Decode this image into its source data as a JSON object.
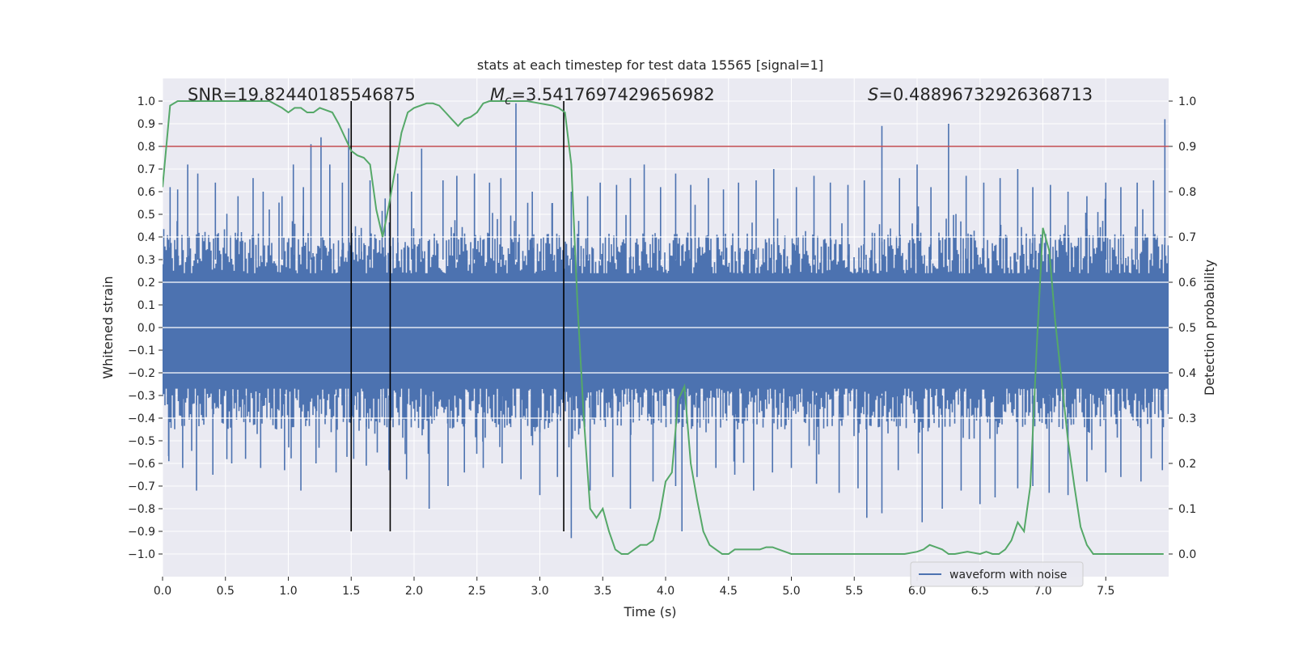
{
  "chart_data": {
    "type": "line",
    "title": "stats at each timestep for test data 15565 [signal=1]",
    "xlabel": "Time (s)",
    "ylabel_left": "Whitened strain",
    "ylabel_right": "Detection probability",
    "xlim": [
      0.0,
      8.0
    ],
    "ylim_left": [
      -1.1,
      1.1
    ],
    "ylim_right": [
      -0.05,
      1.05
    ],
    "x_ticks": [
      "0.0",
      "0.5",
      "1.0",
      "1.5",
      "2.0",
      "2.5",
      "3.0",
      "3.5",
      "4.0",
      "4.5",
      "5.0",
      "5.5",
      "6.0",
      "6.5",
      "7.0",
      "7.5"
    ],
    "y_ticks_left": [
      "1.0",
      "0.9",
      "0.8",
      "0.7",
      "0.6",
      "0.5",
      "0.4",
      "0.3",
      "0.2",
      "0.1",
      "0.0",
      "−0.1",
      "−0.2",
      "−0.3",
      "−0.4",
      "−0.5",
      "−0.6",
      "−0.7",
      "−0.8",
      "−0.9",
      "−1.0"
    ],
    "y_ticks_right": [
      "1.0",
      "0.9",
      "0.8",
      "0.7",
      "0.6",
      "0.5",
      "0.4",
      "0.3",
      "0.2",
      "0.1",
      "0.0"
    ],
    "grid": true,
    "legend": {
      "position": "bottom-right",
      "entries": [
        "waveform with noise"
      ]
    },
    "annotations": {
      "snr": "SNR=19.82440185546875",
      "mc": "Mс=3.5417697429656982",
      "mc_symbol": "M",
      "mc_sub": "c",
      "mc_value": "=3.5417697429656982",
      "s_symbol": "S",
      "s_value": "=0.48896732926368713"
    },
    "threshold_line": {
      "axis": "right",
      "y": 0.9,
      "color": "#c44e52"
    },
    "vertical_markers_x": [
      1.5,
      1.81,
      3.19
    ],
    "series": [
      {
        "name": "waveform with noise",
        "axis": "left",
        "color": "#4c72b0",
        "style": "dense noise, envelope approx ±0.4 with spikes up to ±0.95",
        "spikes_up": [
          [
            0.06,
            0.62
          ],
          [
            0.12,
            0.61
          ],
          [
            0.2,
            0.72
          ],
          [
            0.28,
            0.68
          ],
          [
            0.42,
            0.64
          ],
          [
            0.6,
            0.58
          ],
          [
            0.72,
            0.66
          ],
          [
            0.8,
            0.6
          ],
          [
            0.95,
            0.58
          ],
          [
            1.04,
            0.72
          ],
          [
            1.12,
            0.62
          ],
          [
            1.18,
            0.81
          ],
          [
            1.26,
            0.84
          ],
          [
            1.33,
            0.72
          ],
          [
            1.43,
            0.64
          ],
          [
            1.48,
            0.88
          ],
          [
            1.58,
            0.44
          ],
          [
            1.65,
            0.65
          ],
          [
            1.77,
            0.57
          ],
          [
            1.87,
            0.68
          ],
          [
            1.98,
            0.6
          ],
          [
            2.06,
            0.79
          ],
          [
            2.23,
            0.65
          ],
          [
            2.34,
            0.67
          ],
          [
            2.48,
            0.68
          ],
          [
            2.6,
            0.64
          ],
          [
            2.69,
            0.66
          ],
          [
            2.81,
            0.99
          ],
          [
            2.94,
            0.6
          ],
          [
            3.1,
            0.55
          ],
          [
            3.25,
            0.6
          ],
          [
            3.38,
            0.58
          ],
          [
            3.48,
            0.64
          ],
          [
            3.61,
            0.63
          ],
          [
            3.72,
            0.66
          ],
          [
            3.83,
            0.72
          ],
          [
            3.96,
            0.62
          ],
          [
            4.08,
            0.68
          ],
          [
            4.2,
            0.63
          ],
          [
            4.34,
            0.66
          ],
          [
            4.46,
            0.61
          ],
          [
            4.58,
            0.64
          ],
          [
            4.72,
            0.65
          ],
          [
            4.86,
            0.7
          ],
          [
            5.04,
            0.62
          ],
          [
            5.18,
            0.67
          ],
          [
            5.31,
            0.64
          ],
          [
            5.45,
            0.63
          ],
          [
            5.58,
            0.65
          ],
          [
            5.72,
            0.89
          ],
          [
            5.86,
            0.66
          ],
          [
            6.0,
            0.72
          ],
          [
            6.11,
            0.62
          ],
          [
            6.25,
            0.9
          ],
          [
            6.39,
            0.67
          ],
          [
            6.53,
            0.64
          ],
          [
            6.66,
            0.66
          ],
          [
            6.8,
            0.7
          ],
          [
            6.92,
            0.62
          ],
          [
            7.06,
            0.63
          ],
          [
            7.2,
            0.6
          ],
          [
            7.35,
            0.58
          ],
          [
            7.5,
            0.64
          ],
          [
            7.62,
            0.62
          ],
          [
            7.75,
            0.64
          ],
          [
            7.88,
            0.65
          ],
          [
            7.97,
            0.92
          ]
        ],
        "spikes_down": [
          [
            0.05,
            -0.59
          ],
          [
            0.16,
            -0.62
          ],
          [
            0.27,
            -0.72
          ],
          [
            0.4,
            -0.65
          ],
          [
            0.55,
            -0.6
          ],
          [
            0.66,
            -0.58
          ],
          [
            0.78,
            -0.62
          ],
          [
            0.97,
            -0.63
          ],
          [
            1.1,
            -0.72
          ],
          [
            1.22,
            -0.6
          ],
          [
            1.38,
            -0.64
          ],
          [
            1.52,
            -0.58
          ],
          [
            1.62,
            -0.61
          ],
          [
            1.8,
            -0.63
          ],
          [
            1.94,
            -0.67
          ],
          [
            2.12,
            -0.8
          ],
          [
            2.27,
            -0.7
          ],
          [
            2.4,
            -0.64
          ],
          [
            2.55,
            -0.62
          ],
          [
            2.7,
            -0.6
          ],
          [
            2.85,
            -0.67
          ],
          [
            3.0,
            -0.74
          ],
          [
            3.14,
            -0.66
          ],
          [
            3.25,
            -0.93
          ],
          [
            3.4,
            -0.72
          ],
          [
            3.58,
            -0.66
          ],
          [
            3.72,
            -0.8
          ],
          [
            3.9,
            -0.68
          ],
          [
            4.08,
            -0.7
          ],
          [
            4.13,
            -0.9
          ],
          [
            4.25,
            -0.66
          ],
          [
            4.4,
            -0.62
          ],
          [
            4.55,
            -0.65
          ],
          [
            4.7,
            -0.72
          ],
          [
            4.85,
            -0.64
          ],
          [
            5.0,
            -0.62
          ],
          [
            5.2,
            -0.69
          ],
          [
            5.38,
            -0.73
          ],
          [
            5.53,
            -0.71
          ],
          [
            5.6,
            -0.84
          ],
          [
            5.72,
            -0.82
          ],
          [
            5.85,
            -0.63
          ],
          [
            6.04,
            -0.86
          ],
          [
            6.2,
            -0.8
          ],
          [
            6.35,
            -0.72
          ],
          [
            6.5,
            -0.78
          ],
          [
            6.62,
            -0.75
          ],
          [
            6.8,
            -0.71
          ],
          [
            6.92,
            -0.7
          ],
          [
            7.05,
            -0.73
          ],
          [
            7.2,
            -0.74
          ],
          [
            7.35,
            -0.68
          ],
          [
            7.5,
            -0.64
          ],
          [
            7.62,
            -0.66
          ],
          [
            7.78,
            -0.68
          ],
          [
            7.95,
            -0.63
          ]
        ]
      },
      {
        "name": "",
        "axis": "right",
        "color": "#55a868",
        "x": [
          0.0,
          0.06,
          0.12,
          0.2,
          0.3,
          0.5,
          0.7,
          0.85,
          0.95,
          1.0,
          1.05,
          1.1,
          1.15,
          1.2,
          1.25,
          1.3,
          1.35,
          1.4,
          1.45,
          1.5,
          1.55,
          1.6,
          1.65,
          1.7,
          1.75,
          1.8,
          1.85,
          1.9,
          1.95,
          2.0,
          2.1,
          2.15,
          2.2,
          2.25,
          2.3,
          2.35,
          2.4,
          2.45,
          2.5,
          2.55,
          2.6,
          2.65,
          2.7,
          2.8,
          2.9,
          3.0,
          3.1,
          3.15,
          3.2,
          3.25,
          3.3,
          3.35,
          3.4,
          3.45,
          3.5,
          3.55,
          3.6,
          3.65,
          3.7,
          3.75,
          3.8,
          3.85,
          3.9,
          3.95,
          4.0,
          4.05,
          4.1,
          4.15,
          4.2,
          4.25,
          4.3,
          4.35,
          4.4,
          4.45,
          4.5,
          4.55,
          4.6,
          4.65,
          4.7,
          4.75,
          4.8,
          4.85,
          4.9,
          4.95,
          5.0,
          5.05,
          5.1,
          5.2,
          5.5,
          5.8,
          5.9,
          6.0,
          6.05,
          6.1,
          6.15,
          6.2,
          6.25,
          6.3,
          6.4,
          6.5,
          6.55,
          6.6,
          6.65,
          6.7,
          6.75,
          6.8,
          6.85,
          6.9,
          6.95,
          7.0,
          7.05,
          7.1,
          7.15,
          7.2,
          7.25,
          7.3,
          7.35,
          7.4,
          7.5,
          7.7,
          7.96
        ],
        "y": [
          0.81,
          0.99,
          1.0,
          1.0,
          1.0,
          1.0,
          1.0,
          1.0,
          0.985,
          0.975,
          0.985,
          0.985,
          0.975,
          0.975,
          0.985,
          0.98,
          0.975,
          0.95,
          0.92,
          0.89,
          0.88,
          0.875,
          0.86,
          0.76,
          0.7,
          0.77,
          0.85,
          0.93,
          0.975,
          0.985,
          0.995,
          0.995,
          0.99,
          0.975,
          0.96,
          0.945,
          0.96,
          0.965,
          0.975,
          0.995,
          1.0,
          1.0,
          1.0,
          1.0,
          1.0,
          0.995,
          0.99,
          0.985,
          0.975,
          0.86,
          0.55,
          0.3,
          0.1,
          0.08,
          0.1,
          0.05,
          0.01,
          0.0,
          0.0,
          0.01,
          0.02,
          0.02,
          0.03,
          0.08,
          0.16,
          0.18,
          0.34,
          0.37,
          0.2,
          0.12,
          0.05,
          0.02,
          0.01,
          0.0,
          0.0,
          0.01,
          0.01,
          0.01,
          0.01,
          0.01,
          0.015,
          0.015,
          0.01,
          0.005,
          0.0,
          0.0,
          0.0,
          0.0,
          0.0,
          0.0,
          0.0,
          0.005,
          0.01,
          0.02,
          0.015,
          0.01,
          0.0,
          0.0,
          0.005,
          0.0,
          0.005,
          0.0,
          0.0,
          0.01,
          0.03,
          0.07,
          0.05,
          0.15,
          0.45,
          0.72,
          0.67,
          0.51,
          0.38,
          0.25,
          0.15,
          0.06,
          0.02,
          0.0,
          0.0,
          0.0,
          0.0
        ]
      }
    ]
  }
}
